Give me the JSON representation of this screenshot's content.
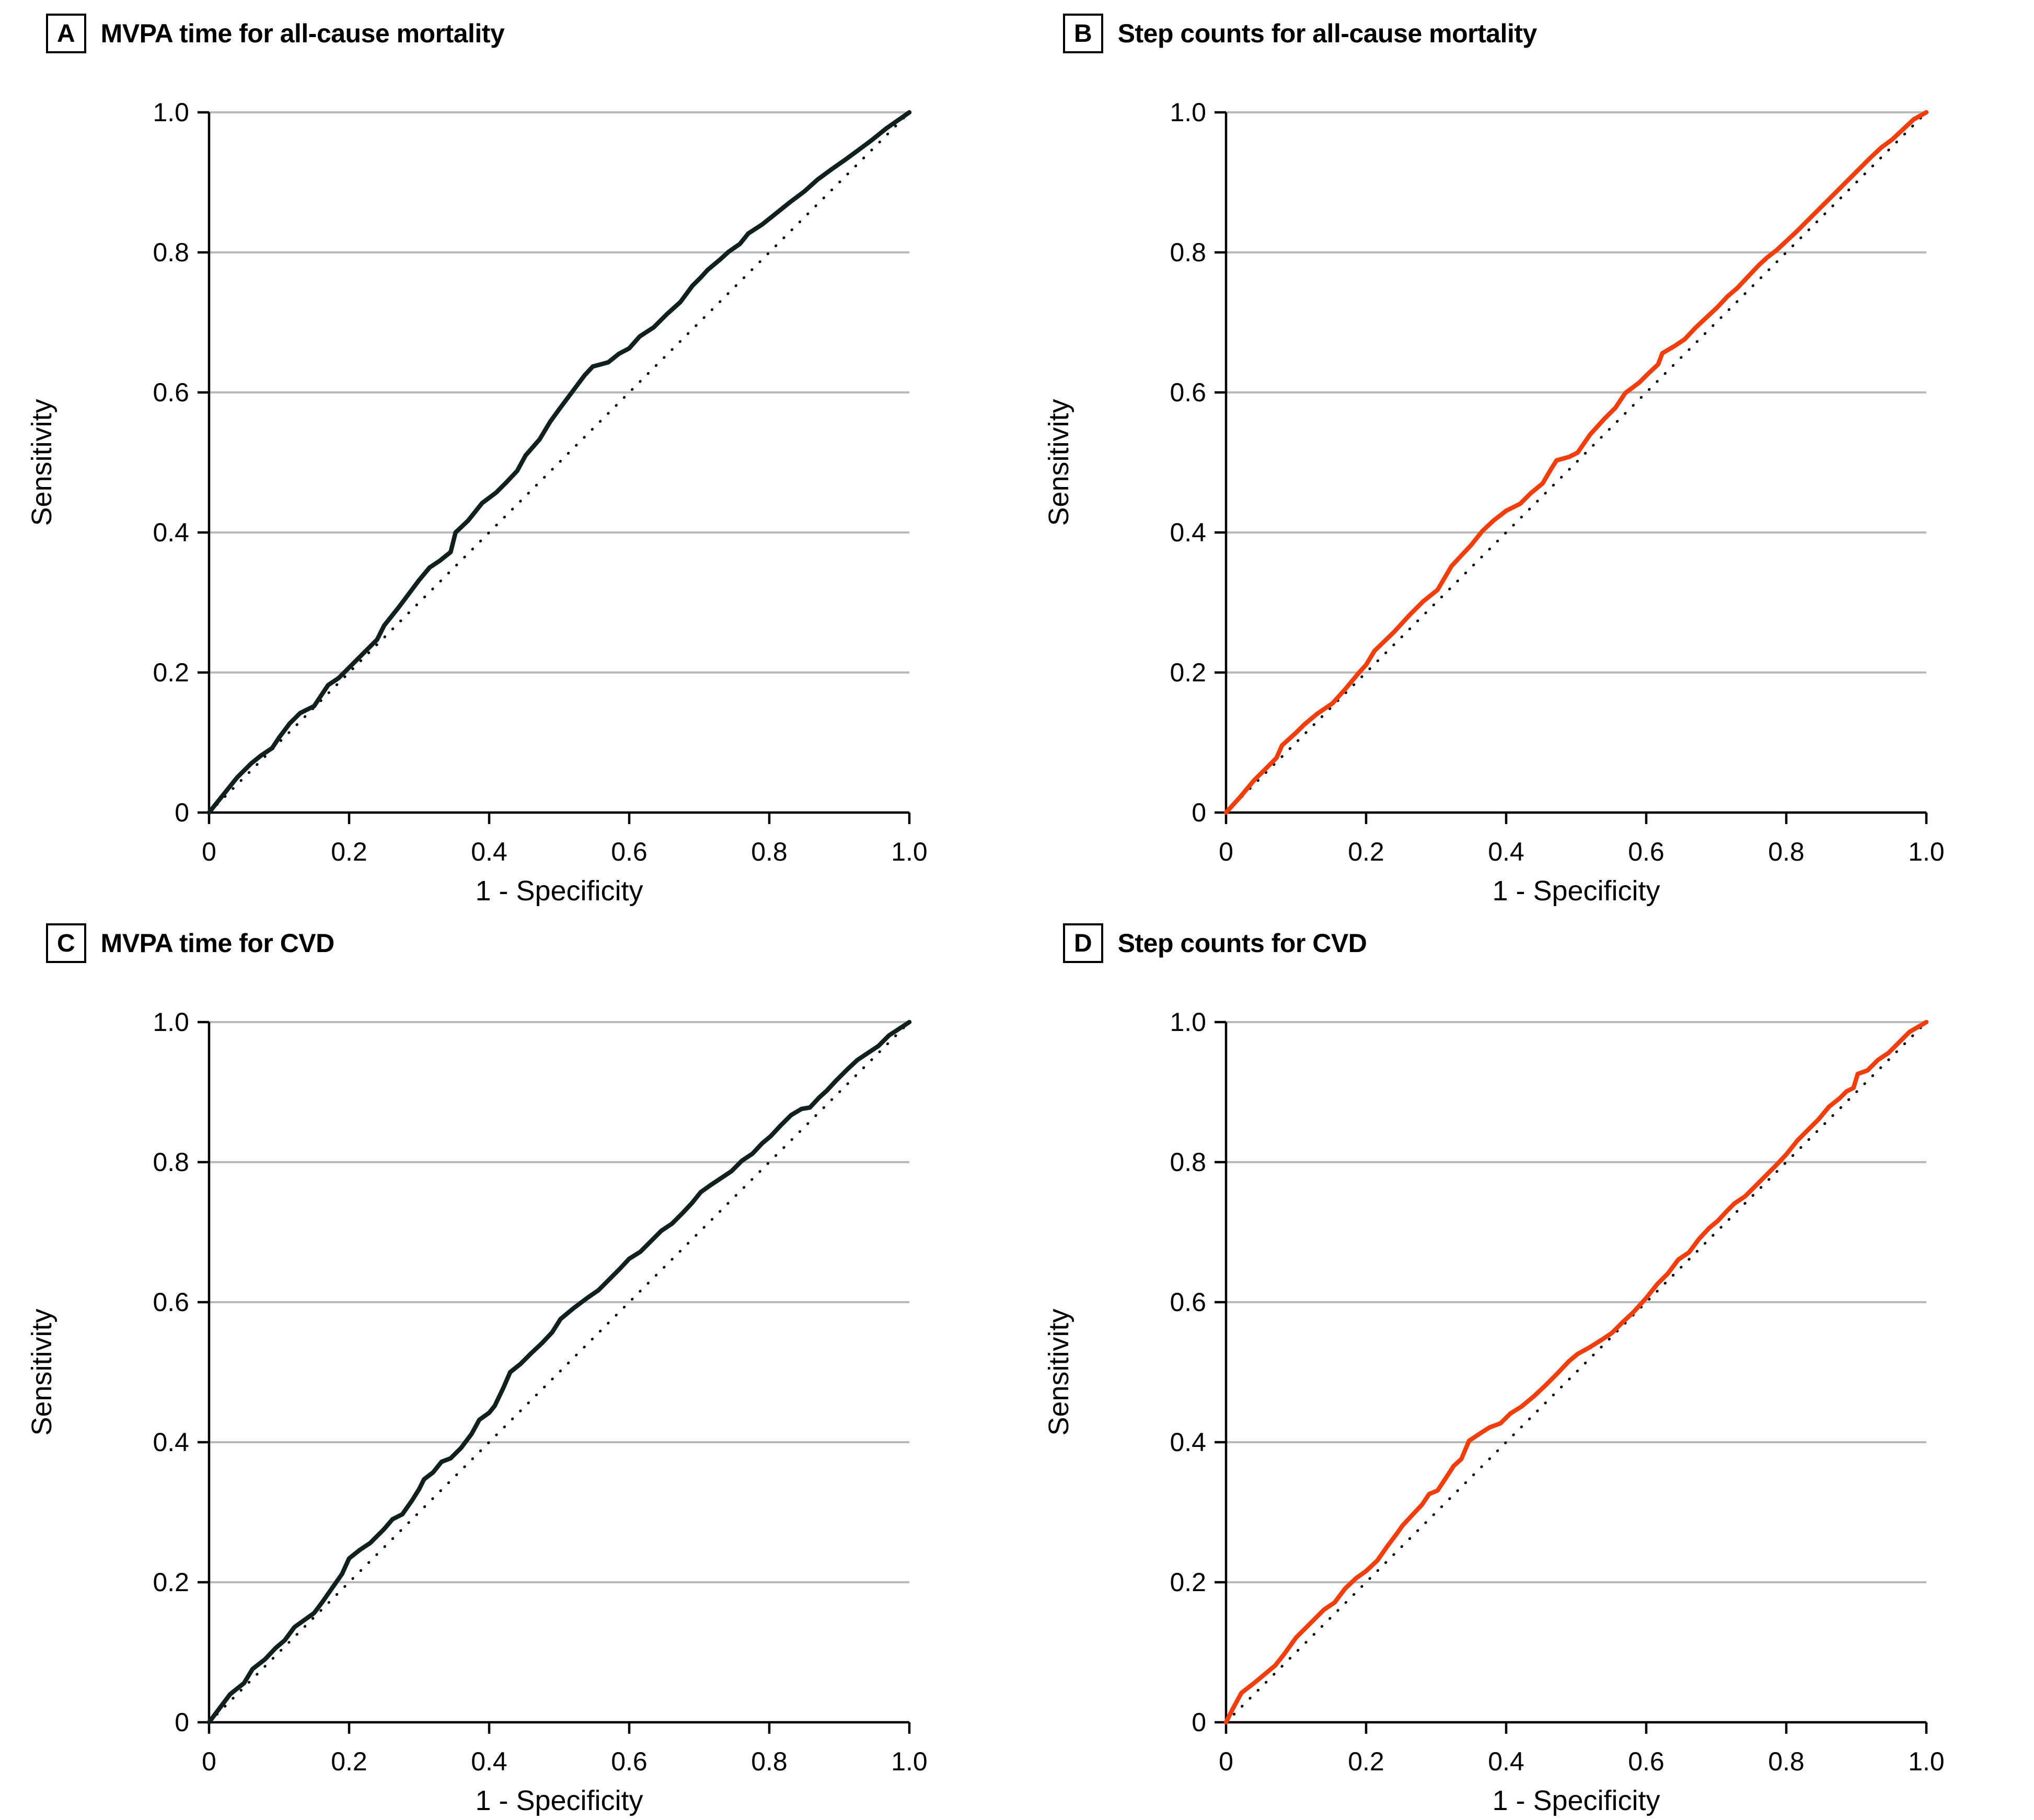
{
  "figure": {
    "colors": {
      "axis": "#000000",
      "text": "#000000",
      "gridline": "#b9b9b9",
      "reference_line": "#000000",
      "mvpa_curve": "#0f201e",
      "steps_curve": "#f23d0c"
    },
    "panels": [
      {
        "letter": "A",
        "title": "MVPA time for all-cause mortality"
      },
      {
        "letter": "B",
        "title": "Step counts for all-cause mortality"
      },
      {
        "letter": "C",
        "title": "MVPA time for CVD"
      },
      {
        "letter": "D",
        "title": "Step counts for CVD"
      }
    ]
  },
  "chart_data": [
    {
      "type": "line",
      "title": "MVPA time for all-cause mortality",
      "xlabel": "1 - Specificity",
      "ylabel": "Sensitivity",
      "xlim": [
        0,
        1
      ],
      "ylim": [
        0,
        1
      ],
      "x_ticks": [
        0,
        0.2,
        0.4,
        0.6,
        0.8,
        1.0
      ],
      "y_ticks": [
        0,
        0.2,
        0.4,
        0.6,
        0.8,
        1.0
      ],
      "x_tick_labels": [
        "0",
        "0.2",
        "0.4",
        "0.6",
        "0.8",
        "1.0"
      ],
      "y_tick_labels": [
        "0",
        "0.2",
        "0.4",
        "0.6",
        "0.8",
        "1.0"
      ],
      "grid": "horizontal",
      "diagonal_reference": true,
      "line_color": "#0f201e",
      "points": [
        [
          0,
          0
        ],
        [
          0.02,
          0.025
        ],
        [
          0.04,
          0.05
        ],
        [
          0.06,
          0.07
        ],
        [
          0.075,
          0.082
        ],
        [
          0.09,
          0.092
        ],
        [
          0.1,
          0.107
        ],
        [
          0.115,
          0.127
        ],
        [
          0.13,
          0.142
        ],
        [
          0.15,
          0.152
        ],
        [
          0.16,
          0.167
        ],
        [
          0.17,
          0.182
        ],
        [
          0.185,
          0.192
        ],
        [
          0.2,
          0.207
        ],
        [
          0.22,
          0.227
        ],
        [
          0.24,
          0.247
        ],
        [
          0.25,
          0.267
        ],
        [
          0.27,
          0.292
        ],
        [
          0.285,
          0.312
        ],
        [
          0.3,
          0.332
        ],
        [
          0.315,
          0.35
        ],
        [
          0.33,
          0.36
        ],
        [
          0.345,
          0.372
        ],
        [
          0.352,
          0.4
        ],
        [
          0.37,
          0.417
        ],
        [
          0.39,
          0.442
        ],
        [
          0.41,
          0.457
        ],
        [
          0.425,
          0.472
        ],
        [
          0.44,
          0.488
        ],
        [
          0.452,
          0.51
        ],
        [
          0.472,
          0.533
        ],
        [
          0.487,
          0.558
        ],
        [
          0.5,
          0.576
        ],
        [
          0.518,
          0.6
        ],
        [
          0.536,
          0.624
        ],
        [
          0.548,
          0.637
        ],
        [
          0.57,
          0.643
        ],
        [
          0.585,
          0.655
        ],
        [
          0.6,
          0.663
        ],
        [
          0.615,
          0.68
        ],
        [
          0.635,
          0.693
        ],
        [
          0.654,
          0.712
        ],
        [
          0.673,
          0.729
        ],
        [
          0.69,
          0.752
        ],
        [
          0.702,
          0.764
        ],
        [
          0.712,
          0.775
        ],
        [
          0.73,
          0.79
        ],
        [
          0.742,
          0.801
        ],
        [
          0.758,
          0.812
        ],
        [
          0.77,
          0.827
        ],
        [
          0.79,
          0.84
        ],
        [
          0.81,
          0.856
        ],
        [
          0.83,
          0.872
        ],
        [
          0.85,
          0.887
        ],
        [
          0.869,
          0.904
        ],
        [
          0.888,
          0.918
        ],
        [
          0.908,
          0.932
        ],
        [
          0.927,
          0.946
        ],
        [
          0.946,
          0.96
        ],
        [
          0.967,
          0.977
        ],
        [
          1,
          1
        ]
      ]
    },
    {
      "type": "line",
      "title": "Step counts for all-cause mortality",
      "xlabel": "1 - Specificity",
      "ylabel": "Sensitivity",
      "xlim": [
        0,
        1
      ],
      "ylim": [
        0,
        1
      ],
      "x_ticks": [
        0,
        0.2,
        0.4,
        0.6,
        0.8,
        1.0
      ],
      "y_ticks": [
        0,
        0.2,
        0.4,
        0.6,
        0.8,
        1.0
      ],
      "x_tick_labels": [
        "0",
        "0.2",
        "0.4",
        "0.6",
        "0.8",
        "1.0"
      ],
      "y_tick_labels": [
        "0",
        "0.2",
        "0.4",
        "0.6",
        "0.8",
        "1.0"
      ],
      "grid": "horizontal",
      "diagonal_reference": true,
      "line_color": "#f23d0c",
      "points": [
        [
          0,
          0
        ],
        [
          0.02,
          0.022
        ],
        [
          0.04,
          0.046
        ],
        [
          0.06,
          0.066
        ],
        [
          0.072,
          0.078
        ],
        [
          0.08,
          0.096
        ],
        [
          0.1,
          0.114
        ],
        [
          0.112,
          0.126
        ],
        [
          0.13,
          0.141
        ],
        [
          0.152,
          0.156
        ],
        [
          0.17,
          0.176
        ],
        [
          0.19,
          0.2
        ],
        [
          0.2,
          0.211
        ],
        [
          0.212,
          0.231
        ],
        [
          0.24,
          0.258
        ],
        [
          0.262,
          0.282
        ],
        [
          0.282,
          0.302
        ],
        [
          0.302,
          0.318
        ],
        [
          0.322,
          0.352
        ],
        [
          0.335,
          0.366
        ],
        [
          0.35,
          0.382
        ],
        [
          0.366,
          0.402
        ],
        [
          0.382,
          0.417
        ],
        [
          0.4,
          0.431
        ],
        [
          0.42,
          0.441
        ],
        [
          0.435,
          0.456
        ],
        [
          0.452,
          0.47
        ],
        [
          0.465,
          0.492
        ],
        [
          0.472,
          0.503
        ],
        [
          0.49,
          0.508
        ],
        [
          0.502,
          0.514
        ],
        [
          0.52,
          0.54
        ],
        [
          0.54,
          0.562
        ],
        [
          0.556,
          0.578
        ],
        [
          0.57,
          0.599
        ],
        [
          0.59,
          0.614
        ],
        [
          0.604,
          0.628
        ],
        [
          0.617,
          0.64
        ],
        [
          0.623,
          0.656
        ],
        [
          0.64,
          0.666
        ],
        [
          0.655,
          0.676
        ],
        [
          0.67,
          0.692
        ],
        [
          0.686,
          0.707
        ],
        [
          0.702,
          0.722
        ],
        [
          0.716,
          0.737
        ],
        [
          0.73,
          0.749
        ],
        [
          0.746,
          0.766
        ],
        [
          0.76,
          0.781
        ],
        [
          0.773,
          0.793
        ],
        [
          0.786,
          0.803
        ],
        [
          0.8,
          0.816
        ],
        [
          0.816,
          0.831
        ],
        [
          0.831,
          0.846
        ],
        [
          0.846,
          0.861
        ],
        [
          0.861,
          0.876
        ],
        [
          0.876,
          0.891
        ],
        [
          0.891,
          0.906
        ],
        [
          0.906,
          0.921
        ],
        [
          0.921,
          0.936
        ],
        [
          0.936,
          0.95
        ],
        [
          0.951,
          0.961
        ],
        [
          0.966,
          0.975
        ],
        [
          0.982,
          0.99
        ],
        [
          1,
          1
        ]
      ]
    },
    {
      "type": "line",
      "title": "MVPA time for CVD",
      "xlabel": "1 - Specificity",
      "ylabel": "Sensitivity",
      "xlim": [
        0,
        1
      ],
      "ylim": [
        0,
        1
      ],
      "x_ticks": [
        0,
        0.2,
        0.4,
        0.6,
        0.8,
        1.0
      ],
      "y_ticks": [
        0,
        0.2,
        0.4,
        0.6,
        0.8,
        1.0
      ],
      "x_tick_labels": [
        "0",
        "0.2",
        "0.4",
        "0.6",
        "0.8",
        "1.0"
      ],
      "y_tick_labels": [
        "0",
        "0.2",
        "0.4",
        "0.6",
        "0.8",
        "1.0"
      ],
      "grid": "horizontal",
      "diagonal_reference": true,
      "line_color": "#0f201e",
      "points": [
        [
          0,
          0
        ],
        [
          0.015,
          0.02
        ],
        [
          0.03,
          0.04
        ],
        [
          0.05,
          0.056
        ],
        [
          0.062,
          0.076
        ],
        [
          0.08,
          0.09
        ],
        [
          0.095,
          0.106
        ],
        [
          0.108,
          0.117
        ],
        [
          0.122,
          0.136
        ],
        [
          0.136,
          0.146
        ],
        [
          0.15,
          0.156
        ],
        [
          0.162,
          0.172
        ],
        [
          0.176,
          0.192
        ],
        [
          0.19,
          0.212
        ],
        [
          0.2,
          0.234
        ],
        [
          0.215,
          0.246
        ],
        [
          0.23,
          0.256
        ],
        [
          0.25,
          0.276
        ],
        [
          0.262,
          0.29
        ],
        [
          0.276,
          0.297
        ],
        [
          0.29,
          0.317
        ],
        [
          0.3,
          0.333
        ],
        [
          0.307,
          0.347
        ],
        [
          0.32,
          0.357
        ],
        [
          0.332,
          0.372
        ],
        [
          0.345,
          0.377
        ],
        [
          0.36,
          0.392
        ],
        [
          0.375,
          0.412
        ],
        [
          0.386,
          0.432
        ],
        [
          0.4,
          0.442
        ],
        [
          0.408,
          0.452
        ],
        [
          0.42,
          0.477
        ],
        [
          0.43,
          0.5
        ],
        [
          0.445,
          0.512
        ],
        [
          0.46,
          0.527
        ],
        [
          0.476,
          0.542
        ],
        [
          0.49,
          0.557
        ],
        [
          0.502,
          0.576
        ],
        [
          0.52,
          0.591
        ],
        [
          0.54,
          0.606
        ],
        [
          0.556,
          0.617
        ],
        [
          0.571,
          0.632
        ],
        [
          0.586,
          0.647
        ],
        [
          0.6,
          0.662
        ],
        [
          0.616,
          0.672
        ],
        [
          0.631,
          0.687
        ],
        [
          0.646,
          0.702
        ],
        [
          0.661,
          0.712
        ],
        [
          0.676,
          0.727
        ],
        [
          0.69,
          0.742
        ],
        [
          0.702,
          0.757
        ],
        [
          0.716,
          0.767
        ],
        [
          0.731,
          0.777
        ],
        [
          0.746,
          0.787
        ],
        [
          0.761,
          0.802
        ],
        [
          0.776,
          0.812
        ],
        [
          0.79,
          0.827
        ],
        [
          0.802,
          0.837
        ],
        [
          0.816,
          0.852
        ],
        [
          0.831,
          0.867
        ],
        [
          0.846,
          0.876
        ],
        [
          0.858,
          0.878
        ],
        [
          0.871,
          0.892
        ],
        [
          0.882,
          0.902
        ],
        [
          0.896,
          0.917
        ],
        [
          0.911,
          0.932
        ],
        [
          0.926,
          0.946
        ],
        [
          0.941,
          0.956
        ],
        [
          0.956,
          0.966
        ],
        [
          0.971,
          0.981
        ],
        [
          1,
          1
        ]
      ]
    },
    {
      "type": "line",
      "title": "Step counts for CVD",
      "xlabel": "1 - Specificity",
      "ylabel": "Sensitivity",
      "xlim": [
        0,
        1
      ],
      "ylim": [
        0,
        1
      ],
      "x_ticks": [
        0,
        0.2,
        0.4,
        0.6,
        0.8,
        1.0
      ],
      "y_ticks": [
        0,
        0.2,
        0.4,
        0.6,
        0.8,
        1.0
      ],
      "x_tick_labels": [
        "0",
        "0.2",
        "0.4",
        "0.6",
        "0.8",
        "1.0"
      ],
      "y_tick_labels": [
        "0",
        "0.2",
        "0.4",
        "0.6",
        "0.8",
        "1.0"
      ],
      "grid": "horizontal",
      "diagonal_reference": true,
      "line_color": "#f23d0c",
      "points": [
        [
          0,
          0
        ],
        [
          0.01,
          0.02
        ],
        [
          0.022,
          0.042
        ],
        [
          0.04,
          0.056
        ],
        [
          0.052,
          0.066
        ],
        [
          0.07,
          0.081
        ],
        [
          0.082,
          0.096
        ],
        [
          0.1,
          0.121
        ],
        [
          0.12,
          0.141
        ],
        [
          0.14,
          0.161
        ],
        [
          0.155,
          0.171
        ],
        [
          0.17,
          0.191
        ],
        [
          0.186,
          0.206
        ],
        [
          0.2,
          0.216
        ],
        [
          0.216,
          0.231
        ],
        [
          0.23,
          0.251
        ],
        [
          0.245,
          0.271
        ],
        [
          0.252,
          0.281
        ],
        [
          0.266,
          0.296
        ],
        [
          0.28,
          0.311
        ],
        [
          0.29,
          0.326
        ],
        [
          0.302,
          0.331
        ],
        [
          0.312,
          0.346
        ],
        [
          0.325,
          0.366
        ],
        [
          0.336,
          0.376
        ],
        [
          0.347,
          0.402
        ],
        [
          0.362,
          0.412
        ],
        [
          0.376,
          0.421
        ],
        [
          0.392,
          0.427
        ],
        [
          0.406,
          0.441
        ],
        [
          0.422,
          0.451
        ],
        [
          0.44,
          0.466
        ],
        [
          0.456,
          0.481
        ],
        [
          0.471,
          0.496
        ],
        [
          0.49,
          0.516
        ],
        [
          0.502,
          0.526
        ],
        [
          0.52,
          0.536
        ],
        [
          0.536,
          0.546
        ],
        [
          0.551,
          0.556
        ],
        [
          0.566,
          0.571
        ],
        [
          0.582,
          0.586
        ],
        [
          0.6,
          0.606
        ],
        [
          0.616,
          0.626
        ],
        [
          0.631,
          0.641
        ],
        [
          0.646,
          0.661
        ],
        [
          0.661,
          0.671
        ],
        [
          0.676,
          0.691
        ],
        [
          0.69,
          0.706
        ],
        [
          0.702,
          0.716
        ],
        [
          0.716,
          0.731
        ],
        [
          0.726,
          0.741
        ],
        [
          0.741,
          0.751
        ],
        [
          0.756,
          0.766
        ],
        [
          0.771,
          0.781
        ],
        [
          0.786,
          0.796
        ],
        [
          0.8,
          0.811
        ],
        [
          0.816,
          0.831
        ],
        [
          0.831,
          0.846
        ],
        [
          0.846,
          0.861
        ],
        [
          0.861,
          0.879
        ],
        [
          0.876,
          0.891
        ],
        [
          0.886,
          0.901
        ],
        [
          0.896,
          0.906
        ],
        [
          0.902,
          0.926
        ],
        [
          0.916,
          0.931
        ],
        [
          0.931,
          0.946
        ],
        [
          0.946,
          0.956
        ],
        [
          0.961,
          0.971
        ],
        [
          0.976,
          0.986
        ],
        [
          1,
          1
        ]
      ]
    }
  ]
}
